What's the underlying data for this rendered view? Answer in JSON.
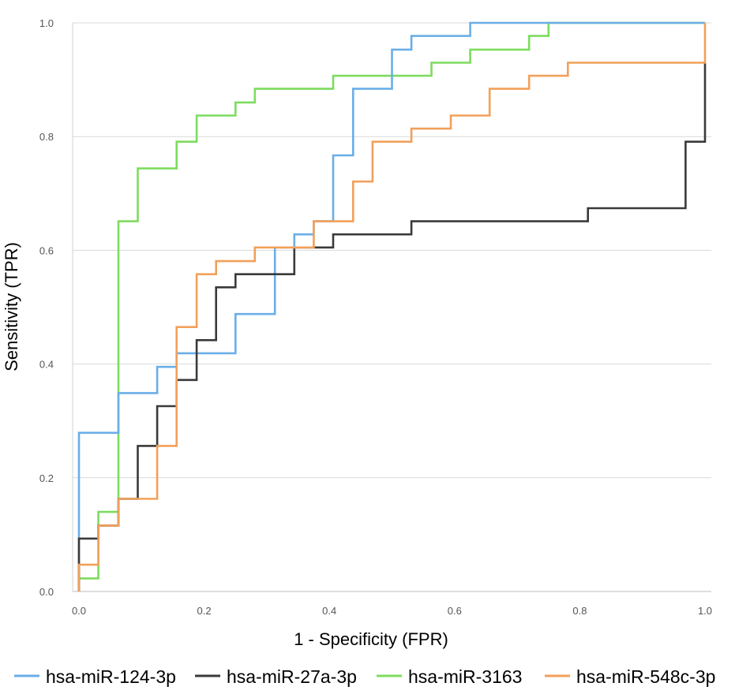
{
  "chart_data": {
    "type": "line",
    "title": "",
    "xlabel": "1 - Specificity (FPR)",
    "ylabel": "Sensitivity (TPR)",
    "xlim": [
      0,
      1
    ],
    "ylim": [
      0,
      1
    ],
    "grid": "horizontal",
    "legend_position": "bottom",
    "x_ticks": [
      "0.0",
      "0.2",
      "0.4",
      "0.6",
      "0.8",
      "1.0"
    ],
    "y_ticks": [
      "0.0",
      "0.2",
      "0.4",
      "0.6",
      "0.8",
      "1.0"
    ],
    "series": [
      {
        "name": "hsa-miR-124-3p",
        "color": "#6aaee8",
        "x": [
          0,
          0,
          0.063,
          0.063,
          0.125,
          0.125,
          0.156,
          0.156,
          0.25,
          0.25,
          0.313,
          0.313,
          0.344,
          0.344,
          0.375,
          0.375,
          0.406,
          0.406,
          0.438,
          0.438,
          0.5,
          0.5,
          0.531,
          0.531,
          0.625,
          0.625,
          1
        ],
        "y": [
          0,
          0.279,
          0.279,
          0.349,
          0.349,
          0.395,
          0.395,
          0.419,
          0.419,
          0.488,
          0.488,
          0.605,
          0.605,
          0.628,
          0.628,
          0.651,
          0.651,
          0.767,
          0.767,
          0.884,
          0.884,
          0.953,
          0.953,
          0.977,
          0.977,
          1,
          1
        ]
      },
      {
        "name": "hsa-miR-27a-3p",
        "color": "#3a3a3a",
        "x": [
          0,
          0,
          0.031,
          0.031,
          0.063,
          0.063,
          0.094,
          0.094,
          0.125,
          0.125,
          0.156,
          0.156,
          0.188,
          0.188,
          0.219,
          0.219,
          0.25,
          0.25,
          0.344,
          0.344,
          0.406,
          0.406,
          0.531,
          0.531,
          0.813,
          0.813,
          0.969,
          0.969,
          1,
          1
        ],
        "y": [
          0,
          0.093,
          0.093,
          0.116,
          0.116,
          0.163,
          0.163,
          0.256,
          0.256,
          0.326,
          0.326,
          0.372,
          0.372,
          0.442,
          0.442,
          0.535,
          0.535,
          0.558,
          0.558,
          0.605,
          0.605,
          0.628,
          0.628,
          0.651,
          0.651,
          0.674,
          0.674,
          0.791,
          0.791,
          0.93
        ]
      },
      {
        "name": "hsa-miR-3163",
        "color": "#7ddc5e",
        "x": [
          0,
          0,
          0.031,
          0.031,
          0.063,
          0.063,
          0.094,
          0.094,
          0.156,
          0.156,
          0.188,
          0.188,
          0.25,
          0.25,
          0.281,
          0.281,
          0.406,
          0.406,
          0.563,
          0.563,
          0.625,
          0.625,
          0.719,
          0.719,
          0.75,
          0.75,
          1
        ],
        "y": [
          0,
          0.023,
          0.023,
          0.14,
          0.14,
          0.651,
          0.651,
          0.744,
          0.744,
          0.791,
          0.791,
          0.837,
          0.837,
          0.86,
          0.86,
          0.884,
          0.884,
          0.907,
          0.907,
          0.93,
          0.93,
          0.953,
          0.953,
          0.977,
          0.977,
          1,
          1
        ]
      },
      {
        "name": "hsa-miR-548c-3p",
        "color": "#f2a05a",
        "x": [
          0,
          0,
          0.031,
          0.031,
          0.063,
          0.063,
          0.125,
          0.125,
          0.156,
          0.156,
          0.188,
          0.188,
          0.219,
          0.219,
          0.281,
          0.281,
          0.375,
          0.375,
          0.438,
          0.438,
          0.469,
          0.469,
          0.531,
          0.531,
          0.594,
          0.594,
          0.656,
          0.656,
          0.719,
          0.719,
          0.781,
          0.781,
          1,
          1
        ],
        "y": [
          0,
          0.047,
          0.047,
          0.116,
          0.116,
          0.163,
          0.163,
          0.256,
          0.256,
          0.465,
          0.465,
          0.558,
          0.558,
          0.581,
          0.581,
          0.605,
          0.605,
          0.651,
          0.651,
          0.721,
          0.721,
          0.791,
          0.791,
          0.814,
          0.814,
          0.837,
          0.837,
          0.884,
          0.884,
          0.907,
          0.907,
          0.93,
          0.93,
          1
        ]
      }
    ]
  }
}
